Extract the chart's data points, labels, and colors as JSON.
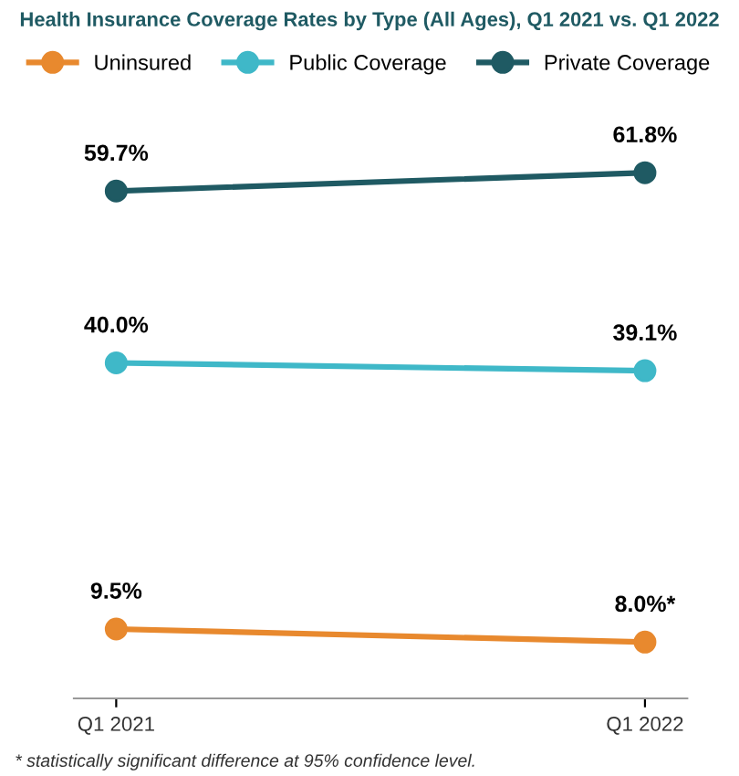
{
  "chart_data": {
    "type": "line",
    "title": "Health Insurance Coverage Rates by Type (All Ages), Q1 2021 vs. Q1 2022",
    "categories": [
      "Q1 2021",
      "Q1 2022"
    ],
    "series": [
      {
        "name": "Uninsured",
        "color": "#e8892e",
        "values": [
          9.5,
          8.0
        ],
        "value_labels": [
          "9.5%",
          "8.0%*"
        ]
      },
      {
        "name": "Public Coverage",
        "color": "#3fb8c8",
        "values": [
          40.0,
          39.1
        ],
        "value_labels": [
          "40.0%",
          "39.1%"
        ]
      },
      {
        "name": "Private Coverage",
        "color": "#1f5a63",
        "values": [
          59.7,
          61.8
        ],
        "value_labels": [
          "59.7%",
          "61.8%"
        ]
      }
    ],
    "marker": "circle",
    "line_style": "solid",
    "legend": "top",
    "grid": false,
    "annotations": [
      "* statistically significant difference at 95% confidence level."
    ]
  }
}
